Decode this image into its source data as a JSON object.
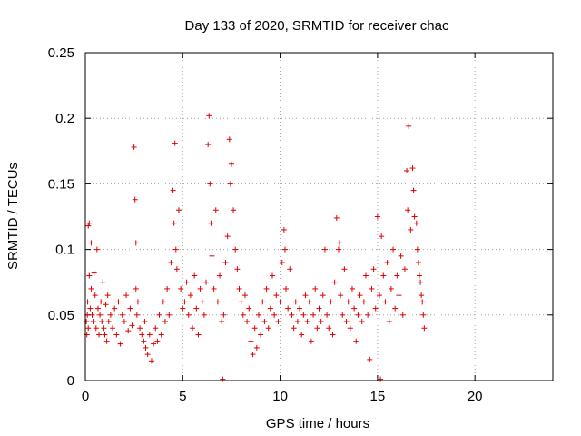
{
  "chart_data": {
    "type": "scatter",
    "title": "Day 133 of 2020, SRMTID for receiver chac",
    "xlabel": "GPS time / hours",
    "ylabel": "SRMTID / TECUs",
    "xlim": [
      0,
      24
    ],
    "ylim": [
      0,
      0.25
    ],
    "xticks": [
      0,
      5,
      10,
      15,
      20
    ],
    "xtick_labels": [
      "0",
      "5",
      "10",
      "15",
      "20"
    ],
    "yticks": [
      0,
      0.05,
      0.1,
      0.15,
      0.2,
      0.25
    ],
    "ytick_labels": [
      "0",
      "0.05",
      "0.1",
      "0.15",
      "0.2",
      "0.25"
    ],
    "grid": true,
    "marker": "+",
    "series_color": "#e00000",
    "series": [
      {
        "name": "SRMTID",
        "points": [
          [
            0.05,
            0.045
          ],
          [
            0.08,
            0.035
          ],
          [
            0.1,
            0.05
          ],
          [
            0.12,
            0.06
          ],
          [
            0.15,
            0.04
          ],
          [
            0.15,
            0.118
          ],
          [
            0.2,
            0.12
          ],
          [
            0.2,
            0.08
          ],
          [
            0.25,
            0.055
          ],
          [
            0.3,
            0.105
          ],
          [
            0.3,
            0.07
          ],
          [
            0.35,
            0.05
          ],
          [
            0.4,
            0.045
          ],
          [
            0.45,
            0.082
          ],
          [
            0.5,
            0.065
          ],
          [
            0.55,
            0.04
          ],
          [
            0.6,
            0.1
          ],
          [
            0.65,
            0.055
          ],
          [
            0.7,
            0.035
          ],
          [
            0.75,
            0.05
          ],
          [
            0.8,
            0.06
          ],
          [
            0.85,
            0.045
          ],
          [
            0.9,
            0.075
          ],
          [
            0.95,
            0.04
          ],
          [
            1.0,
            0.035
          ],
          [
            1.05,
            0.058
          ],
          [
            1.1,
            0.03
          ],
          [
            1.15,
            0.065
          ],
          [
            1.2,
            0.045
          ],
          [
            1.3,
            0.05
          ],
          [
            1.4,
            0.04
          ],
          [
            1.5,
            0.055
          ],
          [
            1.6,
            0.035
          ],
          [
            1.7,
            0.06
          ],
          [
            1.8,
            0.028
          ],
          [
            1.9,
            0.05
          ],
          [
            2.0,
            0.045
          ],
          [
            2.1,
            0.065
          ],
          [
            2.2,
            0.038
          ],
          [
            2.3,
            0.055
          ],
          [
            2.4,
            0.042
          ],
          [
            2.5,
            0.178
          ],
          [
            2.55,
            0.138
          ],
          [
            2.6,
            0.105
          ],
          [
            2.6,
            0.07
          ],
          [
            2.65,
            0.05
          ],
          [
            2.7,
            0.06
          ],
          [
            2.8,
            0.04
          ],
          [
            2.9,
            0.035
          ],
          [
            3.0,
            0.03
          ],
          [
            3.05,
            0.045
          ],
          [
            3.1,
            0.025
          ],
          [
            3.2,
            0.02
          ],
          [
            3.3,
            0.035
          ],
          [
            3.4,
            0.015
          ],
          [
            3.5,
            0.028
          ],
          [
            3.6,
            0.04
          ],
          [
            3.7,
            0.03
          ],
          [
            3.8,
            0.05
          ],
          [
            3.9,
            0.035
          ],
          [
            4.0,
            0.06
          ],
          [
            4.1,
            0.045
          ],
          [
            4.2,
            0.07
          ],
          [
            4.3,
            0.05
          ],
          [
            4.4,
            0.09
          ],
          [
            4.5,
            0.145
          ],
          [
            4.55,
            0.12
          ],
          [
            4.6,
            0.181
          ],
          [
            4.65,
            0.1
          ],
          [
            4.7,
            0.085
          ],
          [
            4.8,
            0.13
          ],
          [
            4.9,
            0.07
          ],
          [
            5.0,
            0.055
          ],
          [
            5.1,
            0.06
          ],
          [
            5.2,
            0.075
          ],
          [
            5.3,
            0.05
          ],
          [
            5.4,
            0.065
          ],
          [
            5.5,
            0.04
          ],
          [
            5.6,
            0.08
          ],
          [
            5.7,
            0.055
          ],
          [
            5.8,
            0.035
          ],
          [
            5.9,
            0.07
          ],
          [
            6.0,
            0.06
          ],
          [
            6.1,
            0.05
          ],
          [
            6.2,
            0.075
          ],
          [
            6.3,
            0.18
          ],
          [
            6.35,
            0.202
          ],
          [
            6.4,
            0.15
          ],
          [
            6.45,
            0.12
          ],
          [
            6.5,
            0.095
          ],
          [
            6.6,
            0.07
          ],
          [
            6.7,
            0.13
          ],
          [
            6.8,
            0.06
          ],
          [
            6.9,
            0.08
          ],
          [
            7.0,
            0.045
          ],
          [
            7.05,
            0.001
          ],
          [
            7.1,
            0.05
          ],
          [
            7.2,
            0.09
          ],
          [
            7.3,
            0.11
          ],
          [
            7.4,
            0.184
          ],
          [
            7.45,
            0.15
          ],
          [
            7.5,
            0.165
          ],
          [
            7.6,
            0.13
          ],
          [
            7.7,
            0.1
          ],
          [
            7.8,
            0.085
          ],
          [
            7.9,
            0.07
          ],
          [
            8.0,
            0.06
          ],
          [
            8.1,
            0.05
          ],
          [
            8.2,
            0.065
          ],
          [
            8.3,
            0.045
          ],
          [
            8.4,
            0.055
          ],
          [
            8.5,
            0.03
          ],
          [
            8.6,
            0.02
          ],
          [
            8.7,
            0.04
          ],
          [
            8.8,
            0.025
          ],
          [
            8.9,
            0.05
          ],
          [
            9.0,
            0.035
          ],
          [
            9.1,
            0.06
          ],
          [
            9.2,
            0.045
          ],
          [
            9.3,
            0.07
          ],
          [
            9.4,
            0.04
          ],
          [
            9.5,
            0.055
          ],
          [
            9.6,
            0.08
          ],
          [
            9.7,
            0.05
          ],
          [
            9.8,
            0.065
          ],
          [
            9.9,
            0.045
          ],
          [
            10.0,
            0.06
          ],
          [
            10.1,
            0.09
          ],
          [
            10.2,
            0.115
          ],
          [
            10.25,
            0.1
          ],
          [
            10.3,
            0.07
          ],
          [
            10.4,
            0.055
          ],
          [
            10.5,
            0.085
          ],
          [
            10.6,
            0.05
          ],
          [
            10.7,
            0.04
          ],
          [
            10.8,
            0.06
          ],
          [
            10.9,
            0.045
          ],
          [
            11.0,
            0.055
          ],
          [
            11.1,
            0.035
          ],
          [
            11.2,
            0.05
          ],
          [
            11.3,
            0.065
          ],
          [
            11.4,
            0.045
          ],
          [
            11.5,
            0.06
          ],
          [
            11.6,
            0.03
          ],
          [
            11.7,
            0.05
          ],
          [
            11.8,
            0.07
          ],
          [
            11.9,
            0.04
          ],
          [
            12.0,
            0.055
          ],
          [
            12.1,
            0.045
          ],
          [
            12.2,
            0.065
          ],
          [
            12.3,
            0.1
          ],
          [
            12.4,
            0.05
          ],
          [
            12.5,
            0.04
          ],
          [
            12.6,
            0.06
          ],
          [
            12.7,
            0.035
          ],
          [
            12.8,
            0.075
          ],
          [
            12.9,
            0.124
          ],
          [
            13.0,
            0.1
          ],
          [
            13.05,
            0.105
          ],
          [
            13.1,
            0.065
          ],
          [
            13.2,
            0.05
          ],
          [
            13.3,
            0.085
          ],
          [
            13.4,
            0.045
          ],
          [
            13.5,
            0.06
          ],
          [
            13.6,
            0.04
          ],
          [
            13.7,
            0.07
          ],
          [
            13.8,
            0.055
          ],
          [
            13.9,
            0.03
          ],
          [
            14.0,
            0.05
          ],
          [
            14.1,
            0.065
          ],
          [
            14.2,
            0.045
          ],
          [
            14.3,
            0.06
          ],
          [
            14.4,
            0.08
          ],
          [
            14.5,
            0.05
          ],
          [
            14.6,
            0.016
          ],
          [
            14.7,
            0.07
          ],
          [
            14.8,
            0.085
          ],
          [
            14.9,
            0.055
          ],
          [
            15.0,
            0.125
          ],
          [
            15.1,
            0.065
          ],
          [
            15.15,
            0.001
          ],
          [
            15.2,
            0.11
          ],
          [
            15.3,
            0.08
          ],
          [
            15.4,
            0.06
          ],
          [
            15.5,
            0.09
          ],
          [
            15.6,
            0.045
          ],
          [
            15.7,
            0.07
          ],
          [
            15.8,
            0.1
          ],
          [
            15.9,
            0.055
          ],
          [
            16.0,
            0.08
          ],
          [
            16.1,
            0.065
          ],
          [
            16.2,
            0.095
          ],
          [
            16.3,
            0.05
          ],
          [
            16.4,
            0.085
          ],
          [
            16.5,
            0.16
          ],
          [
            16.55,
            0.13
          ],
          [
            16.6,
            0.194
          ],
          [
            16.7,
            0.115
          ],
          [
            16.8,
            0.162
          ],
          [
            16.85,
            0.145
          ],
          [
            16.9,
            0.125
          ],
          [
            17.0,
            0.12
          ],
          [
            17.05,
            0.1
          ],
          [
            17.1,
            0.09
          ],
          [
            17.15,
            0.08
          ],
          [
            17.2,
            0.075
          ],
          [
            17.25,
            0.065
          ],
          [
            17.3,
            0.06
          ],
          [
            17.35,
            0.05
          ],
          [
            17.4,
            0.04
          ]
        ]
      }
    ]
  }
}
